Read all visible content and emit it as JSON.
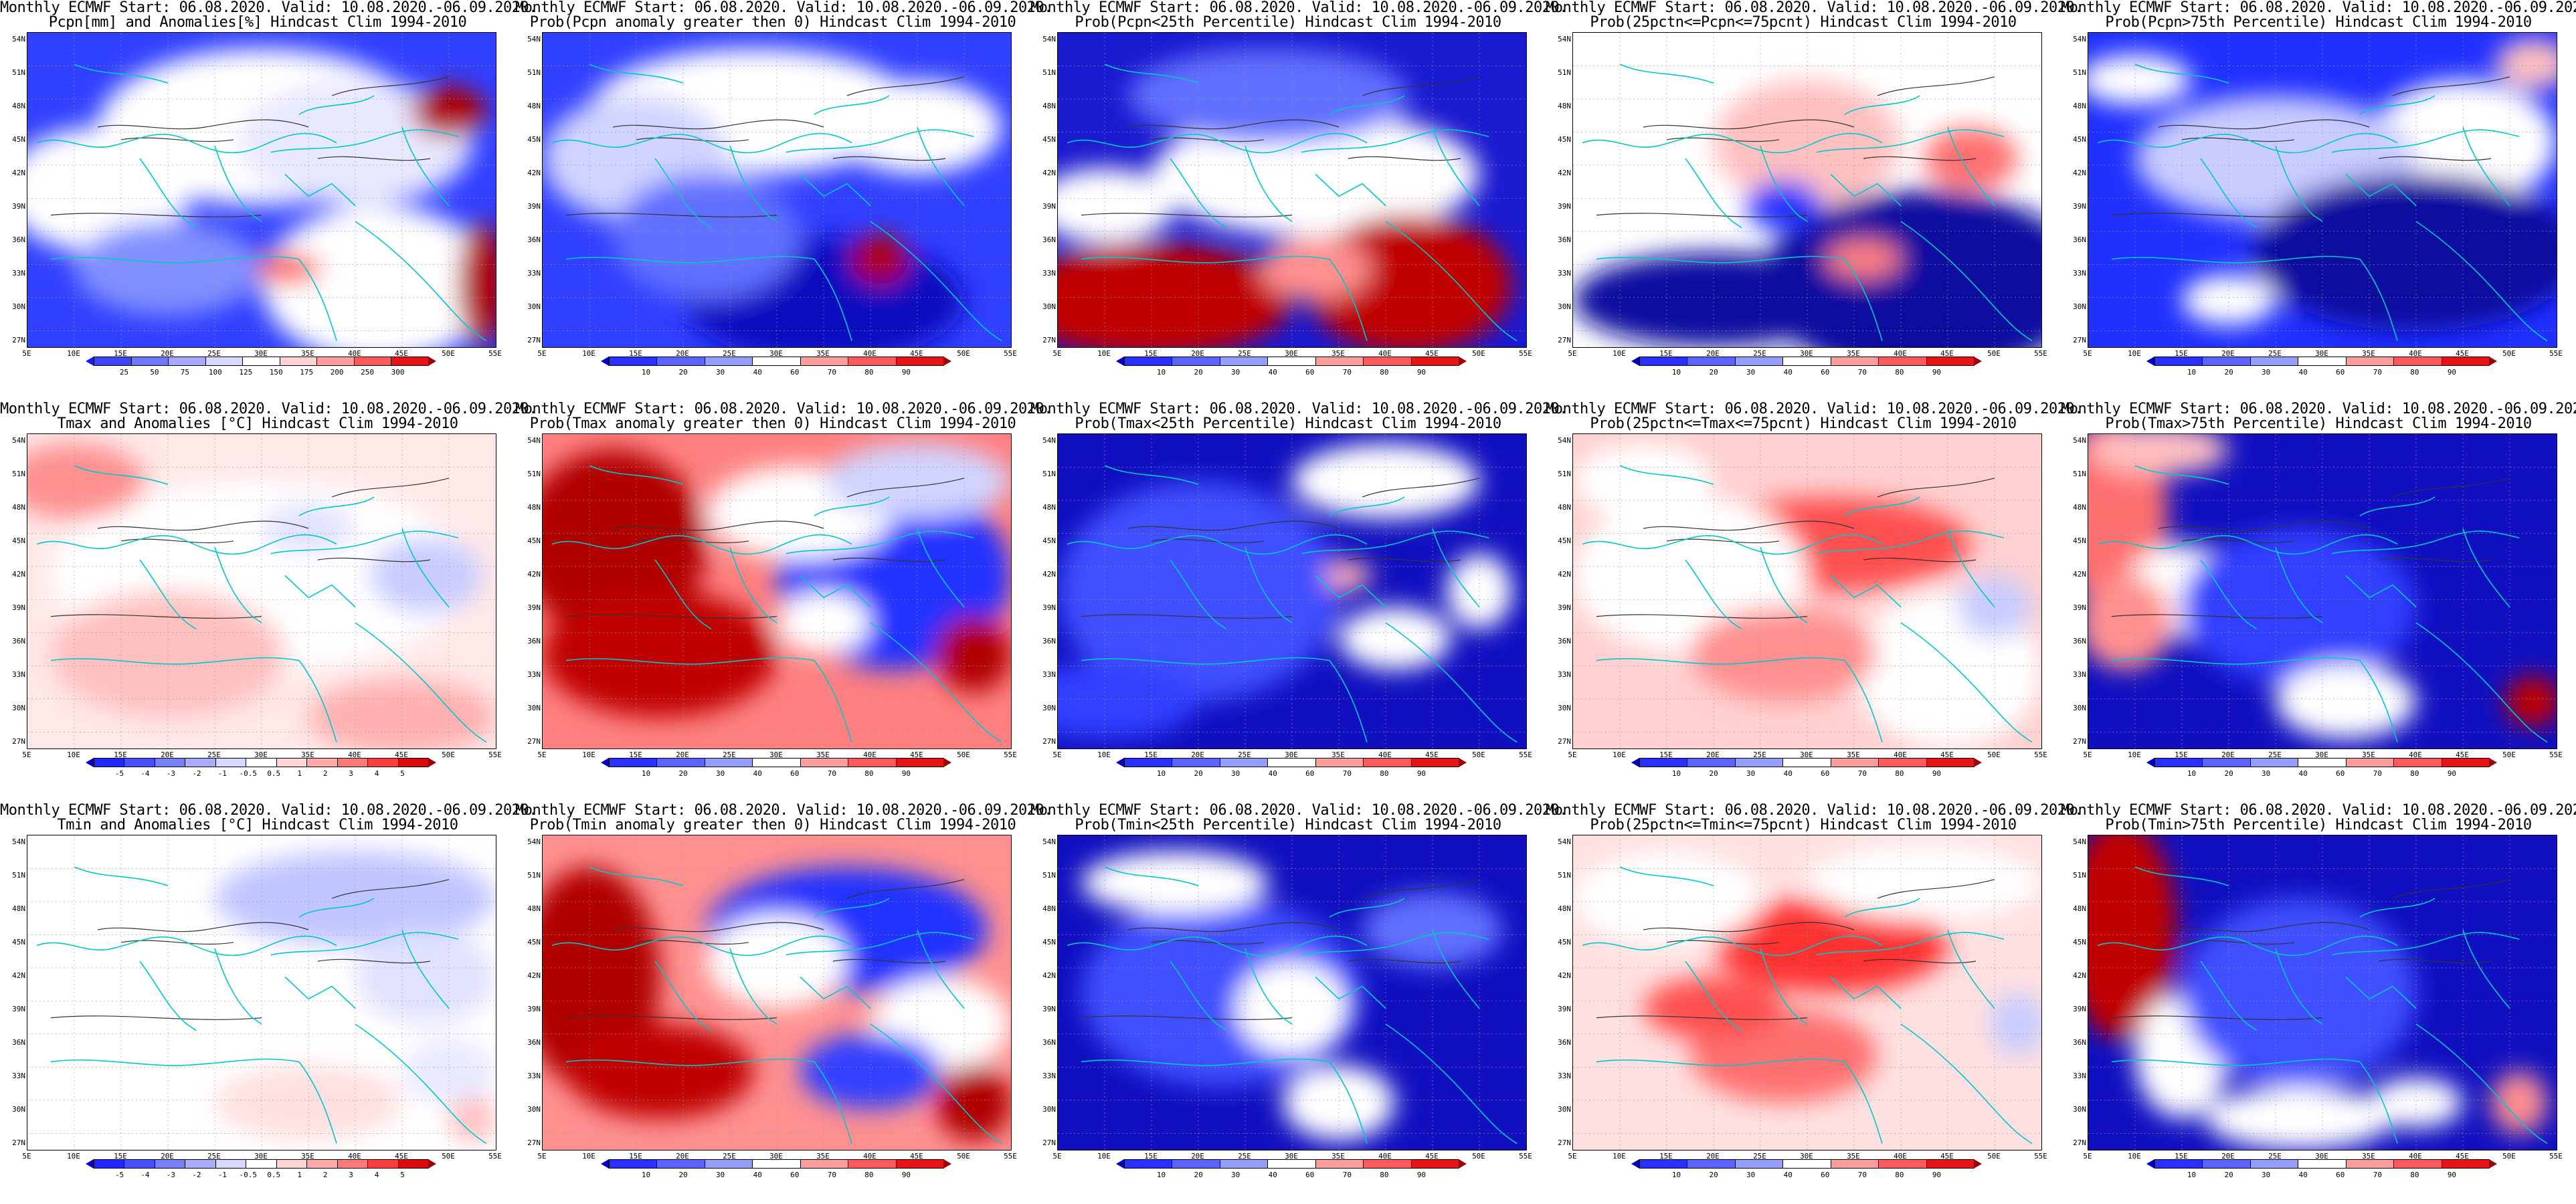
{
  "common": {
    "line1": "Monthly ECMWF Start: 06.08.2020. Valid: 10.08.2020.-06.09.2020.",
    "clim": "Hindcast Clim 1994-2010",
    "lat_labels": [
      "54N",
      "51N",
      "48N",
      "45N",
      "42N",
      "39N",
      "36N",
      "33N",
      "30N",
      "27N"
    ],
    "lon_labels": [
      "5E",
      "10E",
      "15E",
      "20E",
      "25E",
      "30E",
      "35E",
      "40E",
      "45E",
      "50E",
      "55E"
    ]
  },
  "colorbars": {
    "precip": {
      "labels": [
        "25",
        "50",
        "75",
        "100",
        "125",
        "150",
        "175",
        "200",
        "250",
        "300"
      ],
      "colors": [
        "#1a1aff",
        "#3c46ff",
        "#6e78ff",
        "#a5aaff",
        "#d7d9ff",
        "#ffffff",
        "#ffd2d2",
        "#ff9b9b",
        "#ff5a5a",
        "#e61414",
        "#a00000"
      ]
    },
    "prob": {
      "labels": [
        "10",
        "20",
        "30",
        "40",
        "60",
        "70",
        "80",
        "90"
      ],
      "colors": [
        "#0000c8",
        "#2832ff",
        "#5a64ff",
        "#969bff",
        "#ffffff",
        "#ff9b9b",
        "#ff5a5a",
        "#e61414",
        "#a00000"
      ]
    },
    "temp": {
      "labels": [
        "-5",
        "-4",
        "-3",
        "-2",
        "-1",
        "-0.5",
        "0.5",
        "1",
        "2",
        "3",
        "4",
        "5"
      ],
      "colors": [
        "#0000c8",
        "#1e28ff",
        "#4650ff",
        "#7880ff",
        "#a9adff",
        "#d6d8ff",
        "#ffffff",
        "#ffd6d6",
        "#ffa9a9",
        "#ff7878",
        "#ff3c3c",
        "#dc0a0a",
        "#a00000"
      ]
    }
  },
  "panels": [
    {
      "id": "p1",
      "line2": "Pcpn[mm] and Anomalies[%]",
      "bar": "precip"
    },
    {
      "id": "p2",
      "line2": "Prob(Pcpn anomaly greater then 0)",
      "bar": "prob"
    },
    {
      "id": "p3",
      "line2": "Prob(Pcpn<25th Percentile)",
      "bar": "prob"
    },
    {
      "id": "p4",
      "line2": "Prob(25pctn<=Pcpn<=75pcnt)",
      "bar": "prob"
    },
    {
      "id": "p5",
      "line2": "Prob(Pcpn>75th Percentile)",
      "bar": "prob"
    },
    {
      "id": "p6",
      "line2": "Tmax and Anomalies [°C]",
      "bar": "temp"
    },
    {
      "id": "p7",
      "line2": "Prob(Tmax anomaly greater then 0)",
      "bar": "prob"
    },
    {
      "id": "p8",
      "line2": "Prob(Tmax<25th Percentile)",
      "bar": "prob"
    },
    {
      "id": "p9",
      "line2": "Prob(25pctn<=Tmax<=75pcnt)",
      "bar": "prob"
    },
    {
      "id": "p10",
      "line2": "Prob(Tmax>75th Percentile)",
      "bar": "prob"
    },
    {
      "id": "p11",
      "line2": "Tmin and Anomalies [°C]",
      "bar": "temp"
    },
    {
      "id": "p12",
      "line2": "Prob(Tmin anomaly greater then 0)",
      "bar": "prob"
    },
    {
      "id": "p13",
      "line2": "Prob(Tmin<25th Percentile)",
      "bar": "prob"
    },
    {
      "id": "p14",
      "line2": "Prob(25pctn<=Tmin<=75pcnt)",
      "bar": "prob"
    },
    {
      "id": "p15",
      "line2": "Prob(Tmin>75th Percentile)",
      "bar": "prob"
    }
  ]
}
